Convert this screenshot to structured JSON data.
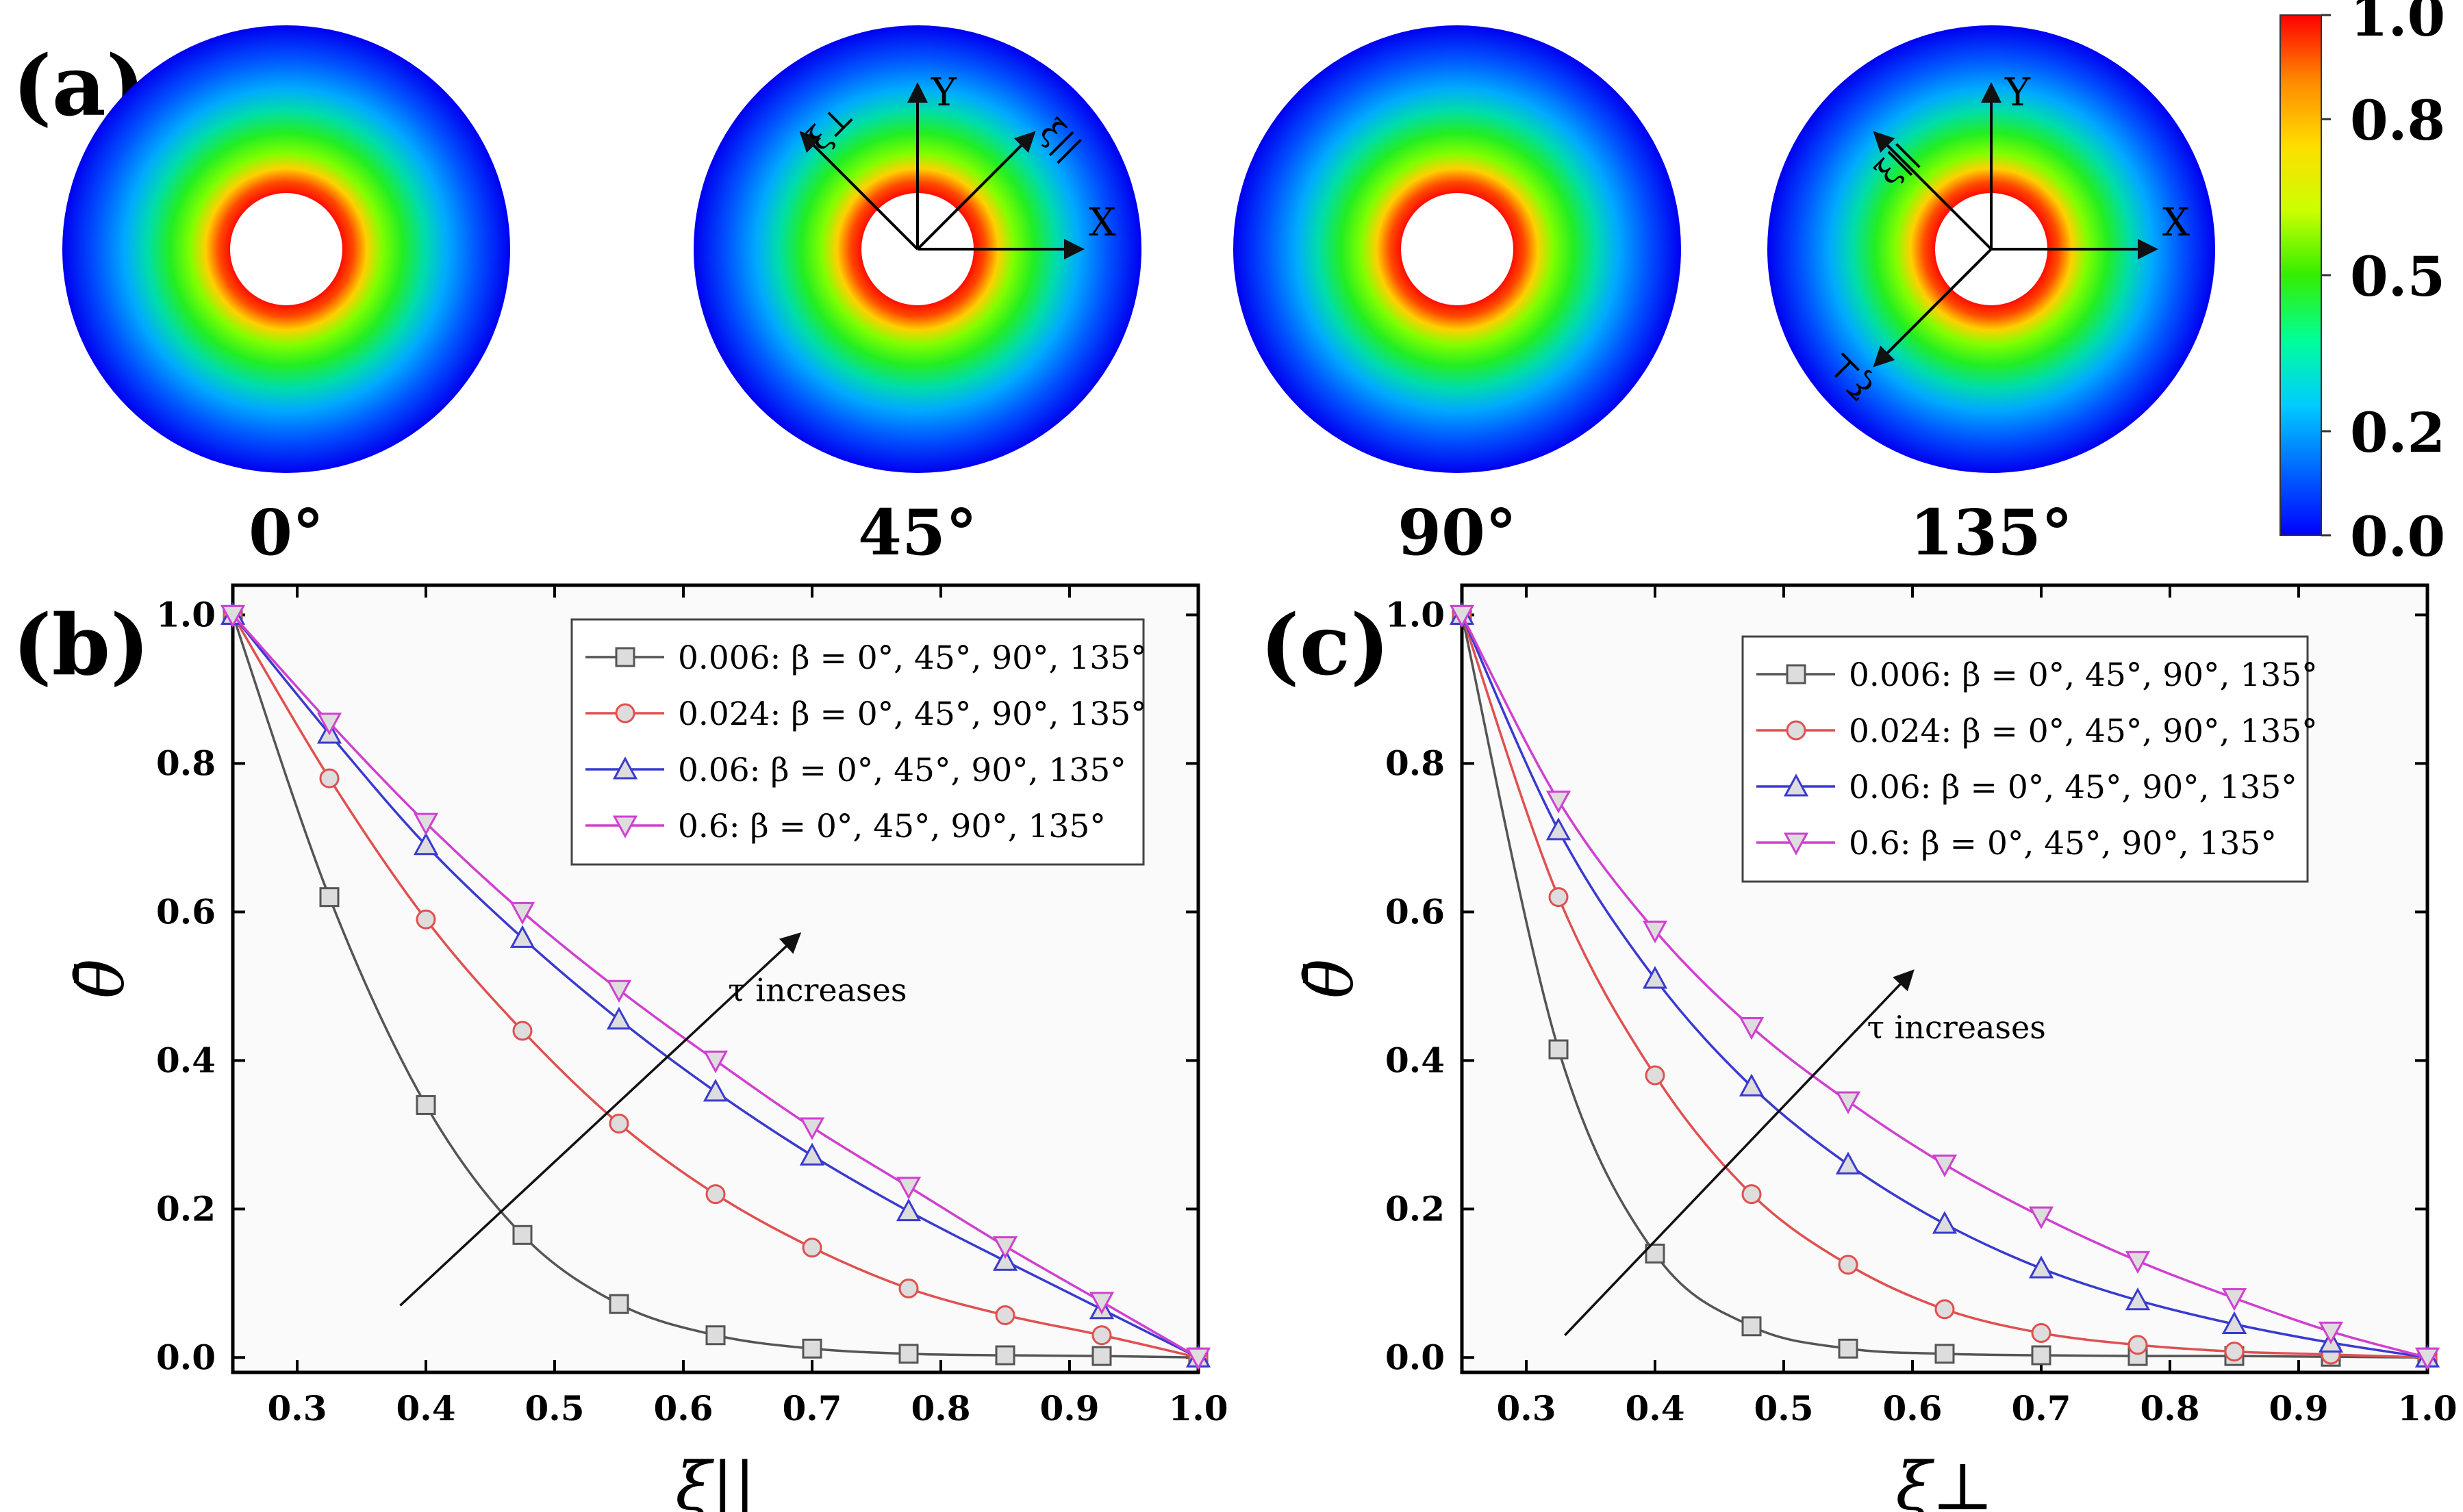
{
  "panel_labels": {
    "a": "(a)",
    "b": "(b)",
    "c": "(c)"
  },
  "disks": [
    {
      "angle_label": "0°",
      "beta": 0,
      "axes": null
    },
    {
      "angle_label": "45°",
      "beta": 45,
      "axes": {
        "x": "X",
        "y": "Y",
        "xi_par": "ξ||",
        "xi_perp": "ξ⊥"
      }
    },
    {
      "angle_label": "90°",
      "beta": 90,
      "axes": null
    },
    {
      "angle_label": "135°",
      "beta": 135,
      "axes": {
        "x": "X",
        "y": "Y",
        "xi_par": "ξ||",
        "xi_perp": "ξ⊥"
      }
    }
  ],
  "colorbar": {
    "ticks": [
      "1.0",
      "0.8",
      "0.5",
      "0.2",
      "0.0"
    ],
    "tick_values": [
      1.0,
      0.8,
      0.5,
      0.2,
      0.0
    ],
    "colors": [
      "#0000ff",
      "#0066ff",
      "#00ccff",
      "#00ff99",
      "#33ee00",
      "#ccff00",
      "#ffdd00",
      "#ff8800",
      "#ff0000"
    ]
  },
  "series_colors": [
    "#555555",
    "#e05050",
    "#3a3ad0",
    "#d040d0"
  ],
  "chart_data": [
    {
      "type": "line",
      "panel": "(b)",
      "xlabel": "ξ||",
      "ylabel": "θ̄",
      "xlim": [
        0.25,
        1.0
      ],
      "ylim": [
        -0.02,
        1.04
      ],
      "xticks": [
        0.3,
        0.4,
        0.5,
        0.6,
        0.7,
        0.8,
        0.9,
        1.0
      ],
      "xtick_labels": [
        "0.3",
        "0.4",
        "0.5",
        "0.6",
        "0.7",
        "0.8",
        "0.9",
        "1.0"
      ],
      "yticks": [
        0.0,
        0.2,
        0.4,
        0.6,
        0.8,
        1.0
      ],
      "ytick_labels": [
        "0.0",
        "0.2",
        "0.4",
        "0.6",
        "0.8",
        "1.0"
      ],
      "annotation": {
        "text": "τ increases",
        "arrow_from": [
          0.38,
          0.07
        ],
        "arrow_to": [
          0.69,
          0.57
        ],
        "text_at": [
          0.64,
          0.48
        ]
      },
      "x": [
        0.25,
        0.325,
        0.4,
        0.475,
        0.55,
        0.625,
        0.7,
        0.775,
        0.85,
        0.925,
        1.0
      ],
      "series": [
        {
          "name": "0.006: β = 0°, 45°, 90°, 135°",
          "marker": "square",
          "values": [
            1.0,
            0.62,
            0.34,
            0.165,
            0.072,
            0.03,
            0.012,
            0.005,
            0.003,
            0.002,
            0.0
          ]
        },
        {
          "name": "0.024: β = 0°, 45°, 90°, 135°",
          "marker": "circle",
          "values": [
            1.0,
            0.78,
            0.59,
            0.44,
            0.315,
            0.22,
            0.148,
            0.093,
            0.057,
            0.03,
            0.0
          ]
        },
        {
          "name": "0.06: β = 0°, 45°, 90°, 135°",
          "marker": "triangle-up",
          "values": [
            1.0,
            0.84,
            0.69,
            0.565,
            0.455,
            0.358,
            0.272,
            0.197,
            0.13,
            0.065,
            0.0
          ]
        },
        {
          "name": "0.6: β = 0°, 45°, 90°, 135°",
          "marker": "triangle-down",
          "values": [
            1.0,
            0.855,
            0.72,
            0.6,
            0.495,
            0.4,
            0.31,
            0.23,
            0.15,
            0.075,
            0.0
          ]
        }
      ]
    },
    {
      "type": "line",
      "panel": "(c)",
      "xlabel": "ξ⊥",
      "ylabel": "θ̄",
      "xlim": [
        0.25,
        1.0
      ],
      "ylim": [
        -0.02,
        1.04
      ],
      "xticks": [
        0.3,
        0.4,
        0.5,
        0.6,
        0.7,
        0.8,
        0.9,
        1.0
      ],
      "xtick_labels": [
        "0.3",
        "0.4",
        "0.5",
        "0.6",
        "0.7",
        "0.8",
        "0.9",
        "1.0"
      ],
      "yticks": [
        0.0,
        0.2,
        0.4,
        0.6,
        0.8,
        1.0
      ],
      "ytick_labels": [
        "0.0",
        "0.2",
        "0.4",
        "0.6",
        "0.8",
        "1.0"
      ],
      "annotation": {
        "text": "τ increases",
        "arrow_from": [
          0.33,
          0.03
        ],
        "arrow_to": [
          0.6,
          0.52
        ],
        "text_at": [
          0.57,
          0.43
        ]
      },
      "x": [
        0.25,
        0.325,
        0.4,
        0.475,
        0.55,
        0.625,
        0.7,
        0.775,
        0.85,
        0.925,
        1.0
      ],
      "series": [
        {
          "name": "0.006: β = 0°, 45°, 90°, 135°",
          "marker": "square",
          "values": [
            1.0,
            0.415,
            0.14,
            0.042,
            0.012,
            0.005,
            0.003,
            0.002,
            0.002,
            0.001,
            0.0
          ]
        },
        {
          "name": "0.024: β = 0°, 45°, 90°, 135°",
          "marker": "circle",
          "values": [
            1.0,
            0.62,
            0.38,
            0.22,
            0.125,
            0.065,
            0.033,
            0.017,
            0.008,
            0.004,
            0.0
          ]
        },
        {
          "name": "0.06: β = 0°, 45°, 90°, 135°",
          "marker": "triangle-up",
          "values": [
            1.0,
            0.71,
            0.51,
            0.365,
            0.26,
            0.18,
            0.12,
            0.077,
            0.045,
            0.02,
            0.0
          ]
        },
        {
          "name": "0.6: β = 0°, 45°, 90°, 135°",
          "marker": "triangle-down",
          "values": [
            1.0,
            0.75,
            0.575,
            0.445,
            0.345,
            0.26,
            0.19,
            0.13,
            0.08,
            0.035,
            0.0
          ]
        }
      ]
    }
  ]
}
